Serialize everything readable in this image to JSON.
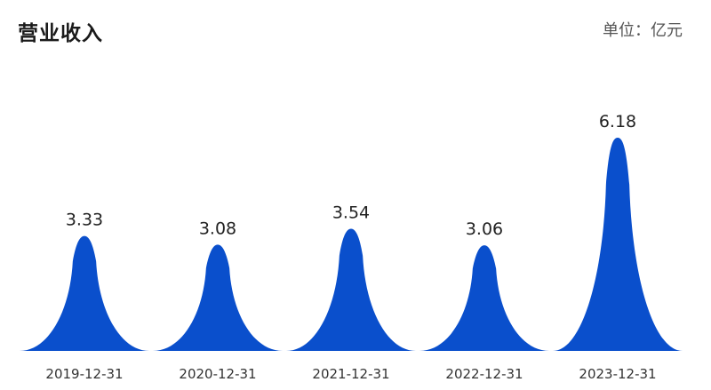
{
  "chart_data": {
    "type": "bar",
    "title": "营业收入",
    "unit": "单位：亿元",
    "categories": [
      "2019-12-31",
      "2020-12-31",
      "2021-12-31",
      "2022-12-31",
      "2023-12-31"
    ],
    "values": [
      3.33,
      3.08,
      3.54,
      3.06,
      6.18
    ],
    "value_labels": [
      "3.33",
      "3.08",
      "3.54",
      "3.06",
      "6.18"
    ],
    "bar_shape": "peak",
    "bar_color": "#0a4fcc",
    "grid": false,
    "legend": "none"
  }
}
